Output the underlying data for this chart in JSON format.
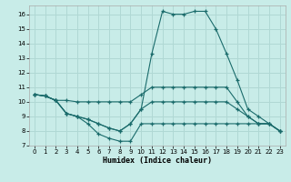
{
  "xlabel": "Humidex (Indice chaleur)",
  "bg_color": "#c8ece8",
  "grid_color": "#b0d8d4",
  "line_color": "#1a6b6b",
  "xlim": [
    -0.5,
    23.5
  ],
  "ylim": [
    7,
    16.6
  ],
  "xticks": [
    0,
    1,
    2,
    3,
    4,
    5,
    6,
    7,
    8,
    9,
    10,
    11,
    12,
    13,
    14,
    15,
    16,
    17,
    18,
    19,
    20,
    21,
    22,
    23
  ],
  "yticks": [
    7,
    8,
    9,
    10,
    11,
    12,
    13,
    14,
    15,
    16
  ],
  "lines": [
    {
      "x": [
        0,
        1,
        2,
        3,
        4,
        5,
        6,
        7,
        8,
        9,
        10,
        11,
        12,
        13,
        14,
        15,
        16,
        17,
        18,
        19,
        20,
        21,
        22,
        23
      ],
      "y": [
        10.5,
        10.4,
        10.1,
        10.1,
        10.0,
        10.0,
        10.0,
        10.0,
        10.0,
        10.0,
        10.5,
        11.0,
        11.0,
        11.0,
        11.0,
        11.0,
        11.0,
        11.0,
        11.0,
        10.0,
        9.0,
        8.5,
        8.5,
        8.0
      ]
    },
    {
      "x": [
        0,
        1,
        2,
        3,
        4,
        5,
        6,
        7,
        8,
        9,
        10,
        11,
        12,
        13,
        14,
        15,
        16,
        17,
        18,
        19,
        20,
        21,
        22,
        23
      ],
      "y": [
        10.5,
        10.4,
        10.1,
        9.2,
        9.0,
        8.8,
        8.5,
        8.2,
        8.0,
        8.5,
        9.5,
        13.3,
        16.2,
        16.0,
        16.0,
        16.2,
        16.2,
        15.0,
        13.3,
        11.5,
        9.5,
        9.0,
        8.5,
        8.0
      ]
    },
    {
      "x": [
        0,
        1,
        2,
        3,
        4,
        5,
        6,
        7,
        8,
        9,
        10,
        11,
        12,
        13,
        14,
        15,
        16,
        17,
        18,
        19,
        20,
        21,
        22,
        23
      ],
      "y": [
        10.5,
        10.4,
        10.1,
        9.2,
        9.0,
        8.8,
        8.5,
        8.2,
        8.0,
        8.5,
        9.5,
        10.0,
        10.0,
        10.0,
        10.0,
        10.0,
        10.0,
        10.0,
        10.0,
        9.5,
        9.0,
        8.5,
        8.5,
        8.0
      ]
    },
    {
      "x": [
        0,
        1,
        2,
        3,
        4,
        5,
        6,
        7,
        8,
        9,
        10,
        11,
        12,
        13,
        14,
        15,
        16,
        17,
        18,
        19,
        20,
        21,
        22,
        23
      ],
      "y": [
        10.5,
        10.4,
        10.1,
        9.2,
        9.0,
        8.5,
        7.8,
        7.5,
        7.3,
        7.3,
        8.5,
        8.5,
        8.5,
        8.5,
        8.5,
        8.5,
        8.5,
        8.5,
        8.5,
        8.5,
        8.5,
        8.5,
        8.5,
        8.0
      ]
    }
  ]
}
